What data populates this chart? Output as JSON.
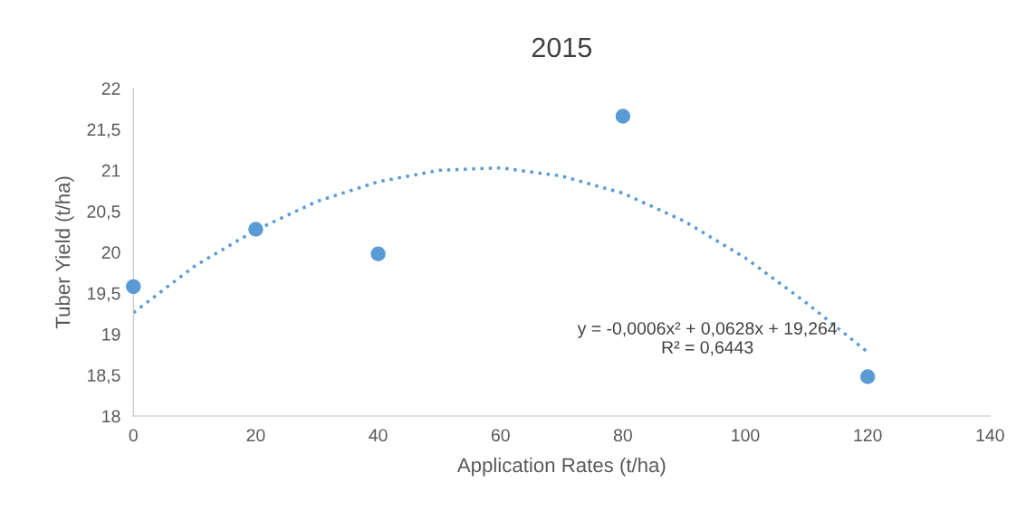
{
  "chart_data": {
    "type": "scatter",
    "title": "2015",
    "xlabel": "Application Rates (t/ha)",
    "ylabel": "Tuber Yield (t/ha)",
    "series": [
      {
        "color": "#5b9bd5",
        "x": [
          0,
          20,
          40,
          80,
          120
        ],
        "values": [
          19.58,
          20.28,
          19.98,
          21.66,
          18.48
        ],
        "marker": "circle"
      },
      {
        "type": "line",
        "color": "#5b9bd5",
        "x": [
          0,
          10,
          20,
          30,
          40,
          50,
          60,
          70,
          80,
          90,
          100,
          110,
          120
        ],
        "values": [
          19.26,
          19.83,
          20.27,
          20.62,
          20.86,
          21.0,
          21.03,
          20.93,
          20.72,
          20.38,
          19.93,
          19.38,
          18.78
        ],
        "line_style": "dotted",
        "marker": "none"
      }
    ],
    "annotations": [
      "y = -0,0006x² + 0,0628x + 19,264\nR² = 0,6443"
    ],
    "xlim": [
      0,
      140
    ],
    "xticks": [
      0,
      20,
      40,
      60,
      80,
      100,
      120,
      140
    ],
    "ylim": [
      18,
      22
    ],
    "yticks": [
      18,
      {
        "value": 18.5,
        "label": "18,5"
      },
      19,
      {
        "value": 19.5,
        "label": "19,5"
      },
      20,
      {
        "value": 20.5,
        "label": "20,5"
      },
      21,
      {
        "value": 21.5,
        "label": "21,5"
      },
      22
    ],
    "grid": false,
    "legend": false
  }
}
